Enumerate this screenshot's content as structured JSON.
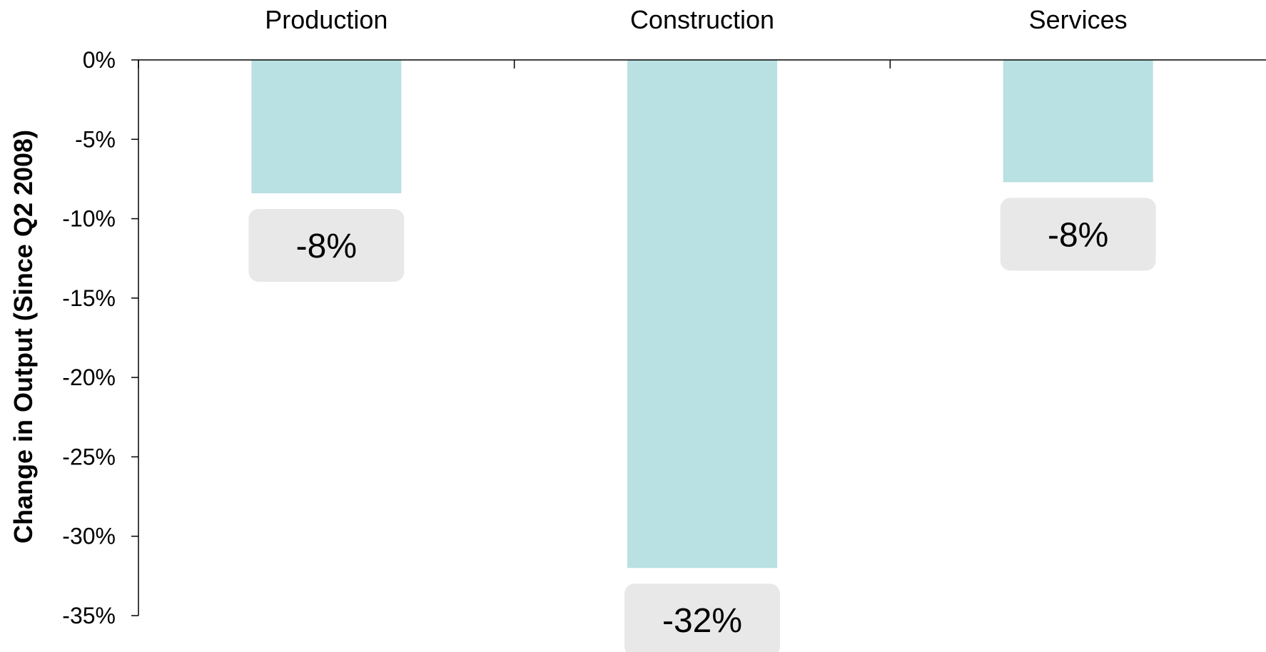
{
  "chart_data": {
    "type": "bar",
    "title": "",
    "xlabel": "",
    "ylabel": "Change in Output (Since Q2 2008)",
    "categories": [
      "Production",
      "Construction",
      "Services"
    ],
    "values": [
      -8.4,
      -32.0,
      -7.7
    ],
    "data_labels": [
      "-8%",
      "-32%",
      "-8%"
    ],
    "ylim": [
      -35,
      0
    ],
    "yticks": [
      0,
      -5,
      -10,
      -15,
      -20,
      -25,
      -30,
      -35
    ],
    "ytick_labels": [
      "0%",
      "-5%",
      "-10%",
      "-15%",
      "-20%",
      "-25%",
      "-30%",
      "-35%"
    ],
    "category_axis_position": "top",
    "grid": false,
    "legend": "none",
    "colors": {
      "bar": "#b9e0e3",
      "label_box": "#e8e8e8",
      "axis": "#000000"
    }
  }
}
